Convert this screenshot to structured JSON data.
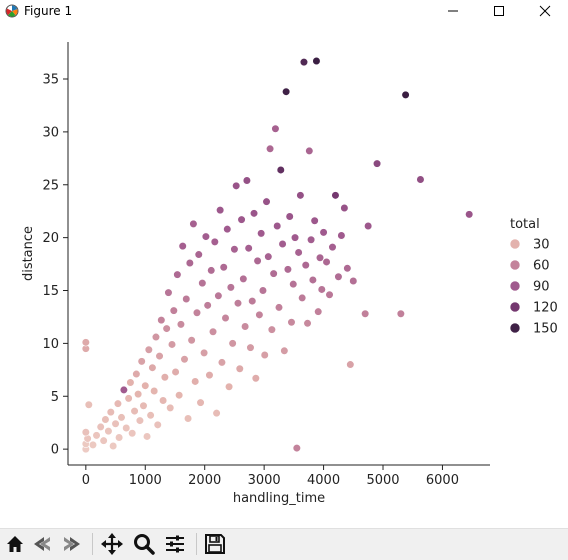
{
  "window": {
    "title": "Figure 1",
    "controls": [
      "minimize-icon",
      "maximize-icon",
      "close-icon"
    ]
  },
  "toolbar": {
    "buttons": [
      "home-icon",
      "back-icon",
      "forward-icon",
      "pan-icon",
      "zoom-icon",
      "configure-subplots-icon",
      "save-icon"
    ]
  },
  "chart_data": {
    "type": "scatter",
    "title": "",
    "xlabel": "handling_time",
    "ylabel": "distance",
    "xlim": [
      -300,
      6800
    ],
    "ylim": [
      -1.5,
      38.5
    ],
    "xticks": [
      0,
      1000,
      2000,
      3000,
      4000,
      5000,
      6000
    ],
    "yticks": [
      0,
      5,
      10,
      15,
      20,
      25,
      30,
      35
    ],
    "grid": false,
    "legend": {
      "title": "total",
      "placement": "right",
      "entries": [
        {
          "label": "30",
          "value": 30,
          "color": "#e3b2ad"
        },
        {
          "label": "60",
          "value": 60,
          "color": "#c3839b"
        },
        {
          "label": "90",
          "value": 90,
          "color": "#a05a8e"
        },
        {
          "label": "120",
          "value": 120,
          "color": "#74386f"
        },
        {
          "label": "150",
          "value": 150,
          "color": "#3f2146"
        }
      ]
    },
    "colormap": [
      "#f2d8cf",
      "#e3b2ad",
      "#c3839b",
      "#a05a8e",
      "#74386f",
      "#3f2146",
      "#2a1535"
    ],
    "points": [
      {
        "x": 0,
        "y": 0,
        "total": 10
      },
      {
        "x": 0,
        "y": 0.5,
        "total": 12
      },
      {
        "x": 30,
        "y": 1.0,
        "total": 15
      },
      {
        "x": 0,
        "y": 1.6,
        "total": 18
      },
      {
        "x": 0,
        "y": 9.5,
        "total": 35
      },
      {
        "x": 0,
        "y": 10.1,
        "total": 35
      },
      {
        "x": 50,
        "y": 4.2,
        "total": 20
      },
      {
        "x": 120,
        "y": 0.4,
        "total": 12
      },
      {
        "x": 180,
        "y": 1.3,
        "total": 15
      },
      {
        "x": 250,
        "y": 2.1,
        "total": 18
      },
      {
        "x": 300,
        "y": 0.8,
        "total": 14
      },
      {
        "x": 330,
        "y": 2.8,
        "total": 20
      },
      {
        "x": 380,
        "y": 1.7,
        "total": 16
      },
      {
        "x": 420,
        "y": 3.5,
        "total": 22
      },
      {
        "x": 460,
        "y": 0.3,
        "total": 12
      },
      {
        "x": 500,
        "y": 2.4,
        "total": 18
      },
      {
        "x": 540,
        "y": 4.3,
        "total": 25
      },
      {
        "x": 560,
        "y": 1.1,
        "total": 14
      },
      {
        "x": 600,
        "y": 3.0,
        "total": 20
      },
      {
        "x": 640,
        "y": 5.6,
        "total": 90
      },
      {
        "x": 680,
        "y": 2.0,
        "total": 16
      },
      {
        "x": 720,
        "y": 4.8,
        "total": 25
      },
      {
        "x": 750,
        "y": 6.3,
        "total": 30
      },
      {
        "x": 780,
        "y": 1.5,
        "total": 15
      },
      {
        "x": 820,
        "y": 3.6,
        "total": 22
      },
      {
        "x": 850,
        "y": 7.1,
        "total": 35
      },
      {
        "x": 880,
        "y": 5.2,
        "total": 28
      },
      {
        "x": 910,
        "y": 2.7,
        "total": 18
      },
      {
        "x": 940,
        "y": 8.3,
        "total": 40
      },
      {
        "x": 970,
        "y": 4.1,
        "total": 24
      },
      {
        "x": 1000,
        "y": 6.0,
        "total": 30
      },
      {
        "x": 1030,
        "y": 1.2,
        "total": 14
      },
      {
        "x": 1060,
        "y": 9.4,
        "total": 42
      },
      {
        "x": 1090,
        "y": 3.2,
        "total": 20
      },
      {
        "x": 1120,
        "y": 7.7,
        "total": 36
      },
      {
        "x": 1150,
        "y": 5.5,
        "total": 28
      },
      {
        "x": 1180,
        "y": 10.6,
        "total": 48
      },
      {
        "x": 1210,
        "y": 2.3,
        "total": 18
      },
      {
        "x": 1240,
        "y": 8.8,
        "total": 40
      },
      {
        "x": 1270,
        "y": 12.2,
        "total": 60
      },
      {
        "x": 1300,
        "y": 4.6,
        "total": 26
      },
      {
        "x": 1330,
        "y": 6.8,
        "total": 32
      },
      {
        "x": 1360,
        "y": 11.4,
        "total": 52
      },
      {
        "x": 1390,
        "y": 14.8,
        "total": 70
      },
      {
        "x": 1420,
        "y": 3.9,
        "total": 22
      },
      {
        "x": 1450,
        "y": 9.9,
        "total": 45
      },
      {
        "x": 1480,
        "y": 13.1,
        "total": 62
      },
      {
        "x": 1510,
        "y": 7.3,
        "total": 34
      },
      {
        "x": 1540,
        "y": 16.5,
        "total": 78
      },
      {
        "x": 1570,
        "y": 5.1,
        "total": 28
      },
      {
        "x": 1600,
        "y": 11.8,
        "total": 55
      },
      {
        "x": 1630,
        "y": 19.2,
        "total": 86
      },
      {
        "x": 1660,
        "y": 8.5,
        "total": 40
      },
      {
        "x": 1690,
        "y": 14.2,
        "total": 66
      },
      {
        "x": 1720,
        "y": 2.9,
        "total": 20
      },
      {
        "x": 1750,
        "y": 17.6,
        "total": 80
      },
      {
        "x": 1780,
        "y": 10.3,
        "total": 48
      },
      {
        "x": 1810,
        "y": 21.3,
        "total": 85
      },
      {
        "x": 1840,
        "y": 6.4,
        "total": 32
      },
      {
        "x": 1870,
        "y": 12.9,
        "total": 60
      },
      {
        "x": 1900,
        "y": 18.4,
        "total": 82
      },
      {
        "x": 1930,
        "y": 4.4,
        "total": 26
      },
      {
        "x": 1960,
        "y": 15.7,
        "total": 72
      },
      {
        "x": 1990,
        "y": 9.1,
        "total": 42
      },
      {
        "x": 2020,
        "y": 20.1,
        "total": 88
      },
      {
        "x": 2050,
        "y": 13.6,
        "total": 64
      },
      {
        "x": 2080,
        "y": 7.0,
        "total": 34
      },
      {
        "x": 2110,
        "y": 16.9,
        "total": 76
      },
      {
        "x": 2140,
        "y": 11.1,
        "total": 52
      },
      {
        "x": 2170,
        "y": 19.6,
        "total": 86
      },
      {
        "x": 2200,
        "y": 3.4,
        "total": 22
      },
      {
        "x": 2230,
        "y": 14.5,
        "total": 68
      },
      {
        "x": 2260,
        "y": 22.6,
        "total": 92
      },
      {
        "x": 2290,
        "y": 8.2,
        "total": 40
      },
      {
        "x": 2320,
        "y": 17.2,
        "total": 78
      },
      {
        "x": 2350,
        "y": 12.4,
        "total": 58
      },
      {
        "x": 2380,
        "y": 20.8,
        "total": 90
      },
      {
        "x": 2410,
        "y": 5.9,
        "total": 30
      },
      {
        "x": 2440,
        "y": 15.3,
        "total": 70
      },
      {
        "x": 2470,
        "y": 10.0,
        "total": 48
      },
      {
        "x": 2500,
        "y": 18.9,
        "total": 84
      },
      {
        "x": 2530,
        "y": 24.9,
        "total": 95
      },
      {
        "x": 2560,
        "y": 13.8,
        "total": 64
      },
      {
        "x": 2590,
        "y": 7.6,
        "total": 36
      },
      {
        "x": 2620,
        "y": 21.7,
        "total": 92
      },
      {
        "x": 2650,
        "y": 16.1,
        "total": 74
      },
      {
        "x": 2680,
        "y": 11.6,
        "total": 55
      },
      {
        "x": 2710,
        "y": 25.4,
        "total": 98
      },
      {
        "x": 2740,
        "y": 19.0,
        "total": 86
      },
      {
        "x": 2770,
        "y": 9.6,
        "total": 45
      },
      {
        "x": 2800,
        "y": 14.0,
        "total": 66
      },
      {
        "x": 2830,
        "y": 22.3,
        "total": 94
      },
      {
        "x": 2860,
        "y": 6.7,
        "total": 34
      },
      {
        "x": 2890,
        "y": 17.8,
        "total": 80
      },
      {
        "x": 2920,
        "y": 12.7,
        "total": 60
      },
      {
        "x": 2950,
        "y": 20.4,
        "total": 90
      },
      {
        "x": 2980,
        "y": 15.0,
        "total": 70
      },
      {
        "x": 3010,
        "y": 8.9,
        "total": 42
      },
      {
        "x": 3040,
        "y": 23.4,
        "total": 96
      },
      {
        "x": 3070,
        "y": 18.2,
        "total": 84
      },
      {
        "x": 3100,
        "y": 28.4,
        "total": 80
      },
      {
        "x": 3130,
        "y": 11.3,
        "total": 52
      },
      {
        "x": 3160,
        "y": 16.6,
        "total": 76
      },
      {
        "x": 3190,
        "y": 30.3,
        "total": 85
      },
      {
        "x": 3220,
        "y": 21.1,
        "total": 92
      },
      {
        "x": 3250,
        "y": 13.4,
        "total": 62
      },
      {
        "x": 3280,
        "y": 26.4,
        "total": 130
      },
      {
        "x": 3310,
        "y": 19.4,
        "total": 88
      },
      {
        "x": 3340,
        "y": 9.3,
        "total": 44
      },
      {
        "x": 3370,
        "y": 33.8,
        "total": 150
      },
      {
        "x": 3400,
        "y": 17.0,
        "total": 78
      },
      {
        "x": 3430,
        "y": 22.0,
        "total": 94
      },
      {
        "x": 3460,
        "y": 12.0,
        "total": 56
      },
      {
        "x": 3490,
        "y": 15.6,
        "total": 72
      },
      {
        "x": 3520,
        "y": 20.0,
        "total": 90
      },
      {
        "x": 3550,
        "y": 0.1,
        "total": 60
      },
      {
        "x": 3580,
        "y": 18.6,
        "total": 84
      },
      {
        "x": 3610,
        "y": 24.0,
        "total": 98
      },
      {
        "x": 3640,
        "y": 14.3,
        "total": 66
      },
      {
        "x": 3670,
        "y": 36.6,
        "total": 140
      },
      {
        "x": 3700,
        "y": 17.4,
        "total": 80
      },
      {
        "x": 3730,
        "y": 11.9,
        "total": 56
      },
      {
        "x": 3760,
        "y": 28.2,
        "total": 82
      },
      {
        "x": 3790,
        "y": 19.8,
        "total": 88
      },
      {
        "x": 3820,
        "y": 16.0,
        "total": 74
      },
      {
        "x": 3850,
        "y": 21.6,
        "total": 92
      },
      {
        "x": 3880,
        "y": 36.7,
        "total": 155
      },
      {
        "x": 3910,
        "y": 13.0,
        "total": 62
      },
      {
        "x": 3940,
        "y": 18.1,
        "total": 82
      },
      {
        "x": 3970,
        "y": 15.1,
        "total": 70
      },
      {
        "x": 4000,
        "y": 20.5,
        "total": 90
      },
      {
        "x": 4050,
        "y": 17.7,
        "total": 80
      },
      {
        "x": 4100,
        "y": 14.6,
        "total": 68
      },
      {
        "x": 4150,
        "y": 19.1,
        "total": 86
      },
      {
        "x": 4200,
        "y": 24.0,
        "total": 120
      },
      {
        "x": 4250,
        "y": 16.3,
        "total": 76
      },
      {
        "x": 4300,
        "y": 20.2,
        "total": 90
      },
      {
        "x": 4350,
        "y": 22.8,
        "total": 96
      },
      {
        "x": 4400,
        "y": 17.1,
        "total": 78
      },
      {
        "x": 4450,
        "y": 8.0,
        "total": 40
      },
      {
        "x": 4500,
        "y": 15.9,
        "total": 74
      },
      {
        "x": 4700,
        "y": 12.8,
        "total": 62
      },
      {
        "x": 4750,
        "y": 21.1,
        "total": 92
      },
      {
        "x": 4900,
        "y": 27.0,
        "total": 105
      },
      {
        "x": 5300,
        "y": 12.8,
        "total": 62
      },
      {
        "x": 5380,
        "y": 33.5,
        "total": 155
      },
      {
        "x": 5630,
        "y": 25.5,
        "total": 100
      },
      {
        "x": 6450,
        "y": 22.2,
        "total": 94
      }
    ]
  }
}
